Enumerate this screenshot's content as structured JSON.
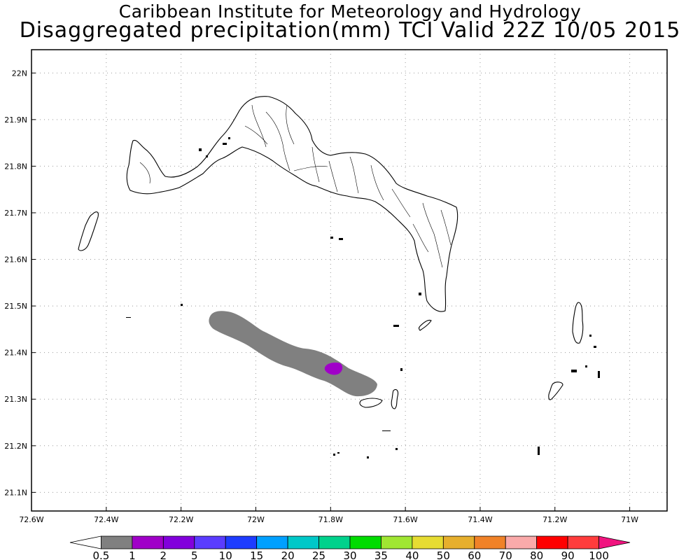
{
  "header": {
    "line1": "Caribbean Institute for Meteorology and Hydrology",
    "line2": "Disaggregated precipitation(mm) TCI Valid 22Z 10/05 2015"
  },
  "map": {
    "lon_range": [
      -72.6,
      -70.9
    ],
    "lat_range": [
      21.06,
      22.05
    ],
    "lon_ticks": [
      {
        "v": -72.6,
        "label": "72.6W"
      },
      {
        "v": -72.4,
        "label": "72.4W"
      },
      {
        "v": -72.2,
        "label": "72.2W"
      },
      {
        "v": -72.0,
        "label": "72W"
      },
      {
        "v": -71.8,
        "label": "71.8W"
      },
      {
        "v": -71.6,
        "label": "71.6W"
      },
      {
        "v": -71.4,
        "label": "71.4W"
      },
      {
        "v": -71.2,
        "label": "71.2W"
      },
      {
        "v": -71.0,
        "label": "71W"
      }
    ],
    "lat_ticks": [
      {
        "v": 22.0,
        "label": "22N"
      },
      {
        "v": 21.9,
        "label": "21.9N"
      },
      {
        "v": 21.8,
        "label": "21.8N"
      },
      {
        "v": 21.7,
        "label": "21.7N"
      },
      {
        "v": 21.6,
        "label": "21.6N"
      },
      {
        "v": 21.5,
        "label": "21.5N"
      },
      {
        "v": 21.4,
        "label": "21.4N"
      },
      {
        "v": 21.3,
        "label": "21.3N"
      },
      {
        "v": 21.2,
        "label": "21.2N"
      },
      {
        "v": 21.1,
        "label": "21.1N"
      }
    ],
    "grid": true,
    "precip_areas": [
      {
        "level": "0.5-1 mm",
        "color": "#808080"
      },
      {
        "level": "1-2 mm",
        "color": "#a000c8"
      }
    ]
  },
  "colorbar": {
    "labels": [
      "0.5",
      "1",
      "2",
      "5",
      "10",
      "15",
      "20",
      "25",
      "30",
      "35",
      "40",
      "50",
      "60",
      "70",
      "80",
      "90",
      "100"
    ],
    "colors": [
      "#ffffff",
      "#808080",
      "#a000c8",
      "#8200dc",
      "#5a3cff",
      "#1e3cff",
      "#00a0ff",
      "#00c8c8",
      "#00d28c",
      "#00dc00",
      "#a0e632",
      "#e6dc32",
      "#e6af2d",
      "#f08228",
      "#faaaaa",
      "#ff0000",
      "#ff3c3c",
      "#f0147f"
    ]
  }
}
